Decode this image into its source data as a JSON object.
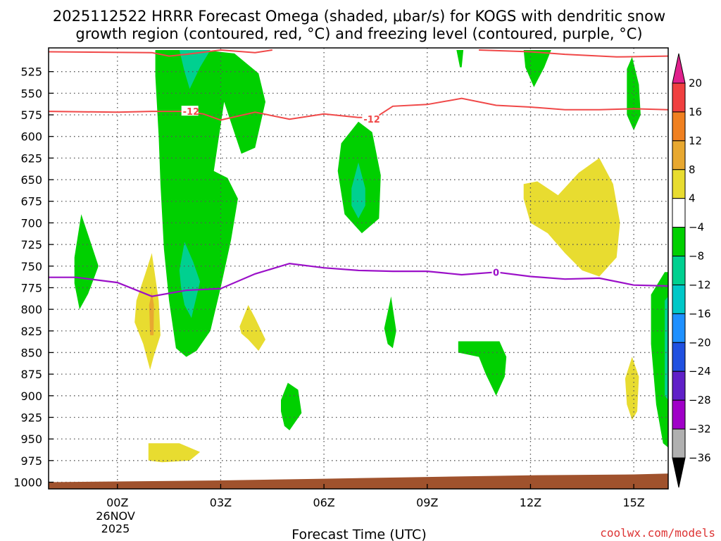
{
  "chart_data": {
    "type": "time-height contour",
    "title_line1": "2025112522 HRRR Forecast Omega (shaded, μbar/s) for KOGS with dendritic snow",
    "title_line2": "growth region (contoured, red, °C) and freezing level (contoured, purple, °C)",
    "xlabel": "Forecast Time (UTC)",
    "credit": "coolwx.com/models",
    "x_range_hours": [
      -2,
      16
    ],
    "x_ticks": [
      {
        "hour": 0,
        "label": "00Z"
      },
      {
        "hour": 3,
        "label": "03Z"
      },
      {
        "hour": 6,
        "label": "06Z"
      },
      {
        "hour": 9,
        "label": "09Z"
      },
      {
        "hour": 12,
        "label": "12Z"
      },
      {
        "hour": 15,
        "label": "15Z"
      }
    ],
    "date_label_day": "26NOV",
    "date_label_year": "2025",
    "y_ticks": [
      525,
      550,
      575,
      600,
      625,
      650,
      675,
      700,
      725,
      750,
      775,
      800,
      825,
      850,
      875,
      900,
      925,
      950,
      975,
      1000
    ],
    "y_range_hpa": [
      500,
      1000
    ],
    "colorbar": {
      "labels": [
        "20",
        "16",
        "12",
        "8",
        "4",
        "−4",
        "−8",
        "−12",
        "−16",
        "−20",
        "−24",
        "−28",
        "−32",
        "−36"
      ],
      "levels": [
        {
          "range": [
            16,
            20
          ],
          "color": "#f04040"
        },
        {
          "range": [
            12,
            16
          ],
          "color": "#f08020"
        },
        {
          "range": [
            8,
            12
          ],
          "color": "#e8a830"
        },
        {
          "range": [
            4,
            8
          ],
          "color": "#e8dc30"
        },
        {
          "range": [
            -4,
            4
          ],
          "color": "#ffffff"
        },
        {
          "range": [
            -8,
            -4
          ],
          "color": "#00d000"
        },
        {
          "range": [
            -12,
            -8
          ],
          "color": "#00d090"
        },
        {
          "range": [
            -16,
            -12
          ],
          "color": "#00c8c8"
        },
        {
          "range": [
            -20,
            -16
          ],
          "color": "#1e90ff"
        },
        {
          "range": [
            -24,
            -20
          ],
          "color": "#2050e0"
        },
        {
          "range": [
            -28,
            -24
          ],
          "color": "#6020c8"
        },
        {
          "range": [
            -32,
            -28
          ],
          "color": "#a000c8"
        },
        {
          "range": [
            -36,
            -32
          ],
          "color": "#b0b0b0"
        }
      ],
      "top_arrow_color": "#e0208c",
      "bottom_arrow_color": "#000000"
    },
    "dendritic_lines": [
      {
        "label": "-12",
        "color": "#f04848",
        "segments": [
          [
            [
              -2,
              502
            ],
            [
              1,
              503
            ],
            [
              1.5,
              507
            ],
            [
              2,
              505
            ],
            [
              3,
              500
            ],
            [
              4,
              503
            ],
            [
              4.5,
              500
            ]
          ],
          [
            [
              10.5,
              500
            ],
            [
              12,
              502
            ],
            [
              13,
              505
            ],
            [
              14.5,
              508
            ],
            [
              16,
              507
            ]
          ],
          [
            [
              -2,
              571
            ],
            [
              0,
              572
            ],
            [
              1,
              571
            ],
            [
              1.5,
              571
            ],
            [
              2,
              571
            ],
            [
              2.5,
              574
            ],
            [
              3,
              581
            ],
            [
              4,
              572
            ],
            [
              5,
              580
            ],
            [
              6,
              574
            ],
            [
              7,
              578
            ],
            [
              7.5,
              578
            ],
            [
              8,
              565
            ],
            [
              9,
              563
            ],
            [
              10,
              556
            ],
            [
              11,
              564
            ],
            [
              12,
              566
            ],
            [
              13,
              569
            ],
            [
              14,
              569
            ],
            [
              15,
              568
            ],
            [
              16,
              569
            ]
          ]
        ],
        "label_points": [
          [
            1.9,
            571
          ],
          [
            7.15,
            580
          ]
        ]
      }
    ],
    "freezing_level": {
      "label": "0",
      "color": "#9b10c8",
      "points": [
        [
          -2,
          763
        ],
        [
          -1.2,
          763
        ],
        [
          0,
          769
        ],
        [
          1,
          785
        ],
        [
          2,
          778
        ],
        [
          3,
          776
        ],
        [
          4,
          759
        ],
        [
          5,
          747
        ],
        [
          6,
          752
        ],
        [
          7,
          755
        ],
        [
          8,
          756
        ],
        [
          9,
          756
        ],
        [
          10,
          760
        ],
        [
          11,
          757
        ],
        [
          12,
          762
        ],
        [
          13,
          765
        ],
        [
          14,
          764
        ],
        [
          15,
          772
        ],
        [
          16,
          773
        ]
      ],
      "label_points": [
        [
          11,
          757
        ]
      ]
    },
    "terrain": {
      "color": "#a0522d",
      "top_points": [
        [
          -2,
          1000
        ],
        [
          3,
          998
        ],
        [
          6,
          996
        ],
        [
          9,
          994
        ],
        [
          12,
          992
        ],
        [
          15,
          991
        ],
        [
          16,
          990
        ]
      ]
    },
    "omega_regions": [
      {
        "value": -6,
        "color": "#00d000",
        "points": [
          [
            1.1,
            500
          ],
          [
            2.5,
            500
          ],
          [
            3.4,
            504
          ],
          [
            4.1,
            527
          ],
          [
            4.3,
            560
          ],
          [
            4.0,
            613
          ],
          [
            3.6,
            620
          ],
          [
            3.1,
            560
          ],
          [
            2.8,
            640
          ],
          [
            3.2,
            648
          ],
          [
            3.5,
            672
          ],
          [
            3.3,
            720
          ],
          [
            3.0,
            775
          ],
          [
            2.7,
            825
          ],
          [
            2.3,
            848
          ],
          [
            2.0,
            855
          ],
          [
            1.7,
            845
          ],
          [
            1.5,
            790
          ],
          [
            1.35,
            730
          ],
          [
            1.25,
            655
          ],
          [
            1.2,
            600
          ],
          [
            1.1,
            530
          ]
        ]
      },
      {
        "value": -10,
        "color": "#00d090",
        "points": [
          [
            1.8,
            500
          ],
          [
            2.7,
            500
          ],
          [
            2.4,
            520
          ],
          [
            2.1,
            545
          ],
          [
            1.95,
            525
          ]
        ]
      },
      {
        "value": -10,
        "color": "#00d090",
        "points": [
          [
            1.8,
            755
          ],
          [
            1.95,
            722
          ],
          [
            2.2,
            745
          ],
          [
            2.4,
            768
          ],
          [
            2.15,
            810
          ],
          [
            1.95,
            795
          ],
          [
            1.85,
            775
          ]
        ]
      },
      {
        "value": -6,
        "color": "#00d000",
        "points": [
          [
            6.5,
            608
          ],
          [
            7.0,
            583
          ],
          [
            7.4,
            595
          ],
          [
            7.65,
            645
          ],
          [
            7.6,
            695
          ],
          [
            7.1,
            712
          ],
          [
            6.6,
            690
          ],
          [
            6.4,
            640
          ]
        ]
      },
      {
        "value": -10,
        "color": "#00d090",
        "points": [
          [
            6.8,
            660
          ],
          [
            7.0,
            630
          ],
          [
            7.2,
            660
          ],
          [
            7.2,
            680
          ],
          [
            7.0,
            695
          ],
          [
            6.8,
            680
          ]
        ]
      },
      {
        "value": -6,
        "color": "#00d000",
        "points": [
          [
            -1.25,
            740
          ],
          [
            -1.05,
            690
          ],
          [
            -0.8,
            720
          ],
          [
            -0.55,
            750
          ],
          [
            -0.85,
            782
          ],
          [
            -1.1,
            800
          ],
          [
            -1.25,
            770
          ]
        ]
      },
      {
        "value": -6,
        "color": "#00d000",
        "points": [
          [
            9.85,
            500
          ],
          [
            10.05,
            500
          ],
          [
            10.0,
            520
          ],
          [
            9.95,
            520
          ]
        ]
      },
      {
        "value": -6,
        "color": "#00d000",
        "points": [
          [
            11.8,
            500
          ],
          [
            12.6,
            500
          ],
          [
            12.4,
            520
          ],
          [
            12.1,
            543
          ],
          [
            11.85,
            520
          ]
        ]
      },
      {
        "value": -6,
        "color": "#00d000",
        "points": [
          [
            14.8,
            522
          ],
          [
            14.95,
            508
          ],
          [
            15.15,
            540
          ],
          [
            15.2,
            575
          ],
          [
            15.0,
            593
          ],
          [
            14.8,
            575
          ]
        ]
      },
      {
        "value": -6,
        "color": "#00d000",
        "points": [
          [
            15.5,
            783
          ],
          [
            15.9,
            757
          ],
          [
            16.0,
            757
          ],
          [
            16.0,
            960
          ],
          [
            15.85,
            955
          ],
          [
            15.65,
            910
          ],
          [
            15.5,
            840
          ]
        ]
      },
      {
        "value": -10,
        "color": "#00d090",
        "points": [
          [
            15.9,
            790
          ],
          [
            16.0,
            785
          ],
          [
            16.0,
            905
          ],
          [
            15.9,
            900
          ]
        ]
      },
      {
        "value": -6,
        "color": "#00d000",
        "points": [
          [
            9.9,
            837
          ],
          [
            11.1,
            837
          ],
          [
            11.3,
            855
          ],
          [
            11.25,
            878
          ],
          [
            11.0,
            900
          ],
          [
            10.7,
            875
          ],
          [
            10.5,
            855
          ],
          [
            9.9,
            850
          ]
        ]
      },
      {
        "value": -6,
        "color": "#00d000",
        "points": [
          [
            7.75,
            822
          ],
          [
            7.95,
            785
          ],
          [
            8.1,
            825
          ],
          [
            8.0,
            845
          ],
          [
            7.85,
            840
          ]
        ]
      },
      {
        "value": -6,
        "color": "#00d000",
        "points": [
          [
            4.75,
            905
          ],
          [
            4.95,
            885
          ],
          [
            5.25,
            893
          ],
          [
            5.35,
            920
          ],
          [
            5.0,
            940
          ],
          [
            4.85,
            935
          ],
          [
            4.75,
            918
          ]
        ]
      },
      {
        "value": 6,
        "color": "#e8dc30",
        "points": [
          [
            0.55,
            790
          ],
          [
            0.8,
            760
          ],
          [
            1.0,
            735
          ],
          [
            1.2,
            790
          ],
          [
            1.25,
            830
          ],
          [
            1.05,
            855
          ],
          [
            0.95,
            870
          ],
          [
            0.75,
            840
          ],
          [
            0.5,
            815
          ]
        ]
      },
      {
        "value": 9,
        "color": "#e8a830",
        "points": [
          [
            0.92,
            795
          ],
          [
            1.0,
            780
          ],
          [
            1.06,
            795
          ],
          [
            1.05,
            830
          ],
          [
            0.95,
            830
          ]
        ]
      },
      {
        "value": 6,
        "color": "#e8dc30",
        "points": [
          [
            3.55,
            820
          ],
          [
            3.8,
            795
          ],
          [
            4.0,
            810
          ],
          [
            4.3,
            835
          ],
          [
            4.1,
            848
          ],
          [
            3.8,
            835
          ],
          [
            3.6,
            828
          ]
        ]
      },
      {
        "value": 6,
        "color": "#e8dc30",
        "points": [
          [
            0.9,
            955
          ],
          [
            1.8,
            955
          ],
          [
            2.4,
            965
          ],
          [
            2.1,
            975
          ],
          [
            1.3,
            977
          ],
          [
            0.9,
            975
          ]
        ]
      },
      {
        "value": 6,
        "color": "#e8dc30",
        "points": [
          [
            11.8,
            655
          ],
          [
            12.2,
            652
          ],
          [
            12.8,
            668
          ],
          [
            13.4,
            642
          ],
          [
            14.0,
            625
          ],
          [
            14.4,
            655
          ],
          [
            14.6,
            700
          ],
          [
            14.5,
            740
          ],
          [
            14.0,
            762
          ],
          [
            13.5,
            755
          ],
          [
            13.0,
            735
          ],
          [
            12.5,
            712
          ],
          [
            12.0,
            700
          ],
          [
            11.8,
            672
          ]
        ]
      },
      {
        "value": 6,
        "color": "#e8dc30",
        "points": [
          [
            14.75,
            880
          ],
          [
            14.95,
            855
          ],
          [
            15.15,
            878
          ],
          [
            15.1,
            918
          ],
          [
            14.95,
            928
          ],
          [
            14.8,
            910
          ]
        ]
      }
    ]
  }
}
